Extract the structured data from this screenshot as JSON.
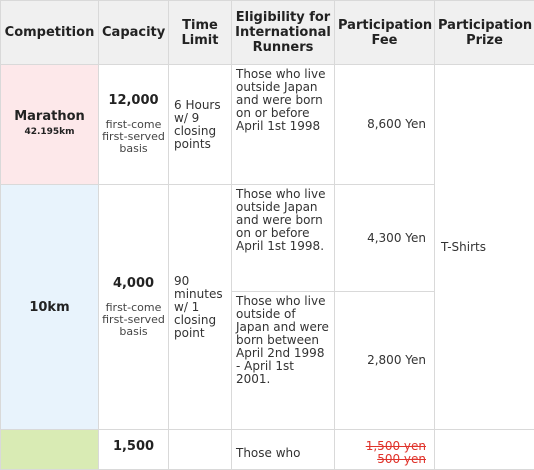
{
  "headers": {
    "competition": "Competition",
    "capacity": "Capacity",
    "time_limit": "Time Limit",
    "eligibility": "Eligibility for International Runners",
    "fee": "Participation Fee",
    "prize": "Participation Prize"
  },
  "marathon": {
    "name": "Marathon",
    "distance": "42.195km",
    "capacity": "12,000",
    "basis": "first-come first-served basis",
    "time_limit": "6 Hours w/ 9 closing points",
    "eligibility": "Those who live outside Japan and were born on or before April 1st 1998",
    "fee": "8,600 Yen"
  },
  "tenk": {
    "name": "10km",
    "capacity": "4,000",
    "basis": "first-come first-served basis",
    "time_limit": "90 minutes w/ 1 closing point",
    "row1": {
      "eligibility": "Those who live outside Japan and were born on or before April 1st 1998.",
      "fee": "4,300 Yen"
    },
    "row2": {
      "eligibility": "Those who live outside of Japan and were born between April 2nd 1998 - April 1st 2001.",
      "fee": "2,800 Yen"
    }
  },
  "prize_shared": "T-Shirts",
  "third": {
    "capacity": "1,500",
    "eligibility": "Those who",
    "fee_struck": "1,500 yen",
    "fee_partial": "500 yen"
  },
  "colors": {
    "marathon_bg": "#fde8ea",
    "tenk_bg": "#e8f3fc",
    "green_bg": "#d9ebb4",
    "strike_red": "#e0332b"
  }
}
